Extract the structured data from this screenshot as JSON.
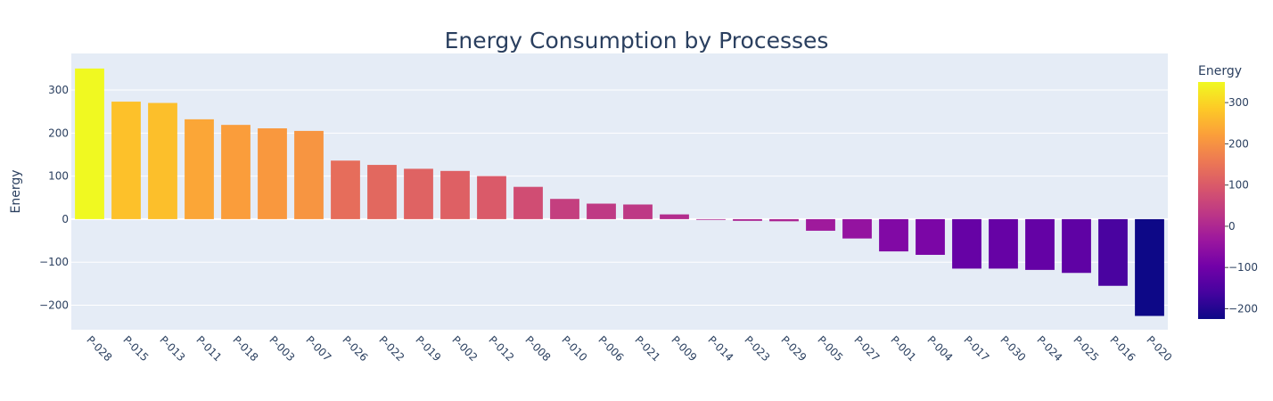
{
  "chart_data": {
    "type": "bar",
    "title": "Energy Consumption by Processes",
    "xlabel": "",
    "ylabel": "Energy",
    "ylim": [
      -257,
      385
    ],
    "yticks": [
      -200,
      -100,
      0,
      100,
      200,
      300
    ],
    "ytick_labels": [
      "−200",
      "−100",
      "0",
      "100",
      "200",
      "300"
    ],
    "categories": [
      "P-028",
      "P-015",
      "P-013",
      "P-011",
      "P-018",
      "P-003",
      "P-007",
      "P-026",
      "P-022",
      "P-019",
      "P-002",
      "P-012",
      "P-008",
      "P-010",
      "P-006",
      "P-021",
      "P-009",
      "P-014",
      "P-023",
      "P-029",
      "P-005",
      "P-027",
      "P-001",
      "P-004",
      "P-017",
      "P-030",
      "P-024",
      "P-025",
      "P-016",
      "P-020"
    ],
    "values": [
      350,
      273,
      270,
      232,
      219,
      211,
      205,
      136,
      126,
      117,
      112,
      100,
      75,
      47,
      36,
      34,
      11,
      -1,
      -4,
      -5,
      -27,
      -45,
      -75,
      -83,
      -115,
      -115,
      -118,
      -125,
      -155,
      -225
    ],
    "colorbar": {
      "title": "Energy",
      "range": [
        -225,
        350
      ],
      "ticks": [
        -200,
        -100,
        0,
        100,
        200,
        300
      ],
      "tick_labels": [
        "−200",
        "−100",
        "0",
        "100",
        "200",
        "300"
      ]
    },
    "colorscale": [
      "#0d0887",
      "#46039f",
      "#7201a8",
      "#9c179e",
      "#bd3786",
      "#d8576b",
      "#ed7953",
      "#fb9f3a",
      "#fdca26",
      "#f0f921"
    ],
    "plot_bg": "#e5ecf6",
    "grid": true
  }
}
